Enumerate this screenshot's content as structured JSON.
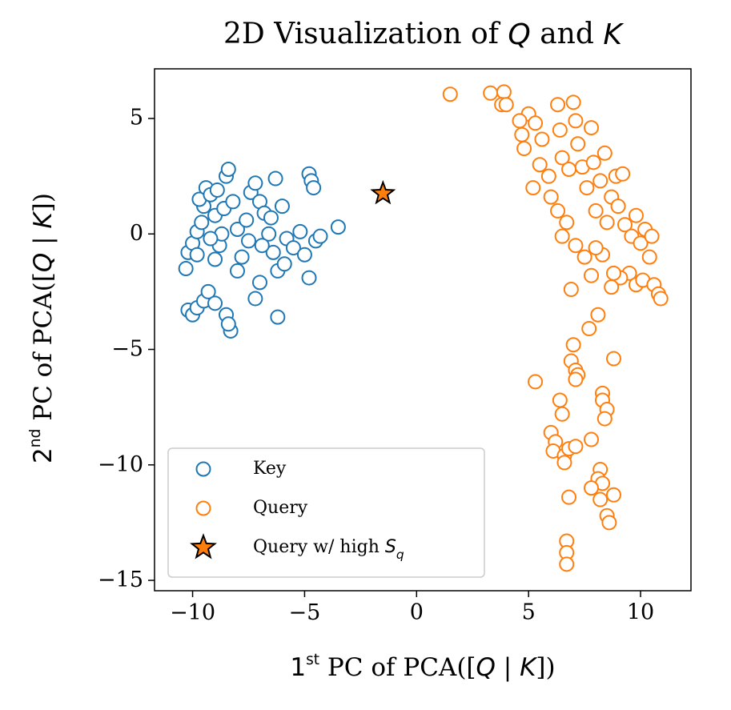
{
  "chart_data": {
    "type": "scatter",
    "title": "2D Visualization of Q and K",
    "x_label": "1st PC of PCA([Q | K])",
    "y_label": "2nd PC of PCA([Q | K])",
    "xlim": [
      -11.7,
      12.25
    ],
    "ylim": [
      -15.45,
      7.15
    ],
    "xticks": [
      {
        "value": -10,
        "label": "−10"
      },
      {
        "value": -5,
        "label": "−5"
      },
      0,
      5,
      10
    ],
    "yticks": [
      {
        "value": -15,
        "label": "−15"
      },
      {
        "value": -10,
        "label": "−10"
      },
      {
        "value": -5,
        "label": "−5"
      },
      0,
      5
    ],
    "legend": "lower left",
    "series": [
      {
        "name": "Key",
        "color": "#1f77b4",
        "marker": "circle",
        "x": [
          -10.2,
          -10.0,
          -9.8,
          -9.5,
          -9.3,
          -9.0,
          -8.5,
          -8.3,
          -8.4,
          -10.3,
          -10.2,
          -10.0,
          -9.8,
          -9.6,
          -9.5,
          -9.7,
          -9.4,
          -9.2,
          -9.0,
          -8.8,
          -8.6,
          -8.5,
          -8.4,
          -8.2,
          -8.0,
          -7.8,
          -7.6,
          -7.4,
          -7.2,
          -7.0,
          -6.8,
          -6.6,
          -6.4,
          -6.2,
          -6.0,
          -6.3,
          -5.8,
          -5.5,
          -5.2,
          -5.0,
          -4.8,
          -4.7,
          -4.6,
          -4.5,
          -4.3,
          -3.5,
          -4.8,
          -6.2,
          -7.2,
          -7.0,
          -8.0,
          -9.0,
          -9.8,
          -8.7,
          -7.5,
          -6.9,
          -6.5,
          -5.9,
          -9.2,
          -8.9
        ],
        "values": [
          -3.3,
          -3.5,
          -3.2,
          -2.9,
          -2.5,
          -3.0,
          -3.5,
          -4.2,
          -3.9,
          -1.5,
          -0.8,
          -0.4,
          0.1,
          0.5,
          1.2,
          1.5,
          2.0,
          1.7,
          0.8,
          -0.5,
          1.1,
          2.5,
          2.8,
          1.4,
          0.2,
          -1.0,
          0.6,
          1.8,
          2.2,
          1.4,
          0.9,
          0.0,
          -0.8,
          -1.6,
          1.2,
          2.4,
          -0.2,
          -0.6,
          0.1,
          -0.9,
          2.6,
          2.3,
          2.0,
          -0.3,
          -0.1,
          0.3,
          -1.9,
          -3.6,
          -2.8,
          -2.1,
          -1.6,
          -1.1,
          -0.9,
          0.0,
          -0.3,
          -0.5,
          0.7,
          -1.3,
          -0.2,
          1.9
        ]
      },
      {
        "name": "Query",
        "color": "#ff7f0e",
        "marker": "circle",
        "x": [
          1.5,
          3.3,
          3.9,
          3.8,
          4.0,
          5.0,
          4.6,
          4.7,
          4.8,
          5.3,
          5.6,
          5.5,
          5.2,
          5.9,
          6.0,
          6.3,
          6.4,
          6.5,
          6.8,
          7.0,
          7.1,
          7.2,
          7.4,
          7.6,
          7.8,
          7.9,
          8.0,
          8.2,
          8.4,
          8.5,
          8.7,
          8.9,
          9.0,
          9.3,
          9.2,
          9.6,
          9.8,
          10.0,
          10.2,
          10.4,
          10.5,
          9.5,
          9.8,
          10.1,
          10.6,
          10.8,
          10.9,
          9.1,
          8.8,
          8.3,
          8.0,
          7.8,
          7.5,
          8.7,
          6.9,
          6.5,
          6.3,
          6.7,
          7.1,
          8.1,
          7.7,
          7.0,
          8.8,
          6.9,
          7.1,
          7.2,
          7.1,
          5.3,
          8.3,
          8.3,
          8.5,
          8.4,
          6.4,
          6.5,
          6.0,
          6.2,
          6.1,
          6.6,
          6.8,
          7.1,
          7.8,
          6.6,
          8.2,
          8.1,
          8.3,
          7.8,
          8.2,
          8.8,
          6.8,
          8.5,
          8.6,
          6.7,
          6.7,
          6.7
        ],
        "values": [
          6.05,
          6.1,
          6.15,
          5.6,
          5.6,
          5.2,
          4.9,
          4.3,
          3.7,
          4.8,
          4.1,
          3.0,
          2.0,
          2.5,
          1.6,
          5.6,
          4.5,
          3.3,
          2.8,
          5.7,
          4.9,
          3.9,
          2.9,
          2.0,
          4.6,
          3.1,
          1.0,
          2.3,
          3.5,
          0.5,
          1.6,
          2.5,
          1.2,
          0.4,
          2.6,
          -0.1,
          0.8,
          -0.4,
          0.2,
          -1.0,
          -0.1,
          -1.7,
          -2.2,
          -2.0,
          -2.2,
          -2.6,
          -2.8,
          -1.9,
          -1.7,
          -0.9,
          -0.6,
          -1.8,
          -1.0,
          -2.3,
          -2.4,
          -0.1,
          1.0,
          0.5,
          -0.5,
          -3.5,
          -4.1,
          -4.8,
          -5.4,
          -5.5,
          -5.9,
          -6.1,
          -6.3,
          -6.4,
          -6.9,
          -7.2,
          -7.6,
          -8.0,
          -7.2,
          -7.8,
          -8.6,
          -9.0,
          -9.4,
          -9.6,
          -9.3,
          -9.2,
          -8.9,
          -9.9,
          -10.2,
          -10.6,
          -10.8,
          -11.0,
          -11.5,
          -11.3,
          -11.4,
          -12.2,
          -12.5,
          -13.3,
          -13.8,
          -14.3
        ]
      },
      {
        "name": "Query w/ high Sq",
        "color": "#ff7f0e",
        "marker": "star",
        "x": [
          -1.5
        ],
        "values": [
          1.75
        ]
      }
    ]
  }
}
